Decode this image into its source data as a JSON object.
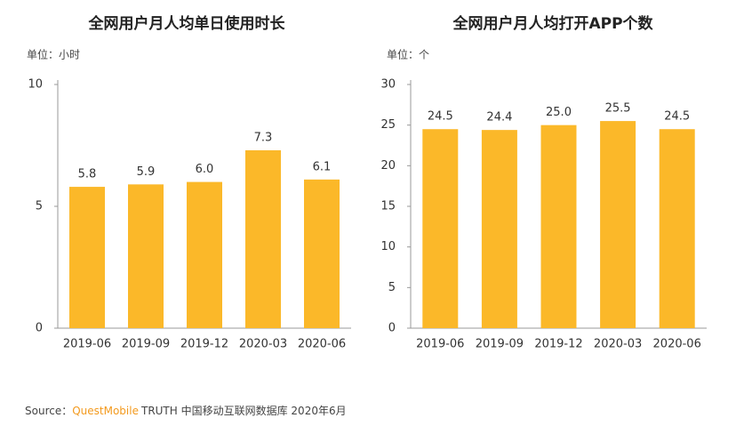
{
  "chart_data": [
    {
      "type": "bar",
      "title": "全网用户月人均单日使用时长",
      "y_label": "单位：小时",
      "categories": [
        "2019-06",
        "2019-09",
        "2019-12",
        "2020-03",
        "2020-06"
      ],
      "values": [
        5.8,
        5.9,
        6.0,
        7.3,
        6.1
      ],
      "value_labels": [
        "5.8",
        "5.9",
        "6.0",
        "7.3",
        "6.1"
      ],
      "color": "#fbb829",
      "ylim": [
        0,
        10
      ],
      "yticks": [
        0,
        5,
        10
      ]
    },
    {
      "type": "bar",
      "title": "全网用户月人均打开APP个数",
      "y_label": "单位：个",
      "categories": [
        "2019-06",
        "2019-09",
        "2019-12",
        "2020-03",
        "2020-06"
      ],
      "values": [
        24.5,
        24.4,
        25.0,
        25.5,
        24.5
      ],
      "value_labels": [
        "24.5",
        "24.4",
        "25.0",
        "25.5",
        "24.5"
      ],
      "color": "#fbb829",
      "ylim": [
        0,
        30
      ],
      "yticks": [
        0,
        5,
        10,
        15,
        20,
        25,
        30
      ]
    }
  ],
  "source": {
    "label": "Source：",
    "brand": "QuestMobile",
    "text": "TRUTH 中国移动互联网数据库 2020年6月"
  }
}
